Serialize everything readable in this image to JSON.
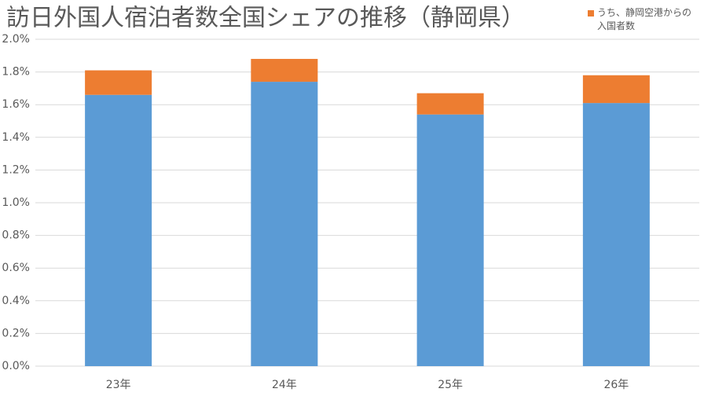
{
  "chart_data": {
    "type": "stacked_bar",
    "title": "訪日外国人宿泊者数全国シェアの推移（静岡県）",
    "categories": [
      "23年",
      "24年",
      "25年",
      "26年"
    ],
    "series": [
      {
        "color": "#5b9bd5",
        "values": [
          1.66,
          1.74,
          1.54,
          1.61
        ]
      },
      {
        "name": "うち、静岡空港からの入国者数",
        "color": "#ed7d31",
        "values": [
          0.15,
          0.14,
          0.13,
          0.17
        ]
      }
    ],
    "ylim": [
      0,
      2.0
    ],
    "yticks": [
      {
        "value": 0,
        "label": "0.0%"
      },
      {
        "value": 0.2,
        "label": "0.2%"
      },
      {
        "value": 0.4,
        "label": "0.4%"
      },
      {
        "value": 0.6,
        "label": "0.6%"
      },
      {
        "value": 0.8,
        "label": "0.8%"
      },
      {
        "value": 1.0,
        "label": "1.0%"
      },
      {
        "value": 1.2,
        "label": "1.2%"
      },
      {
        "value": 1.4,
        "label": "1.4%"
      },
      {
        "value": 1.6,
        "label": "1.6%"
      },
      {
        "value": 1.8,
        "label": "1.8%"
      },
      {
        "value": 2.0,
        "label": "2.0%"
      }
    ],
    "grid": true
  }
}
